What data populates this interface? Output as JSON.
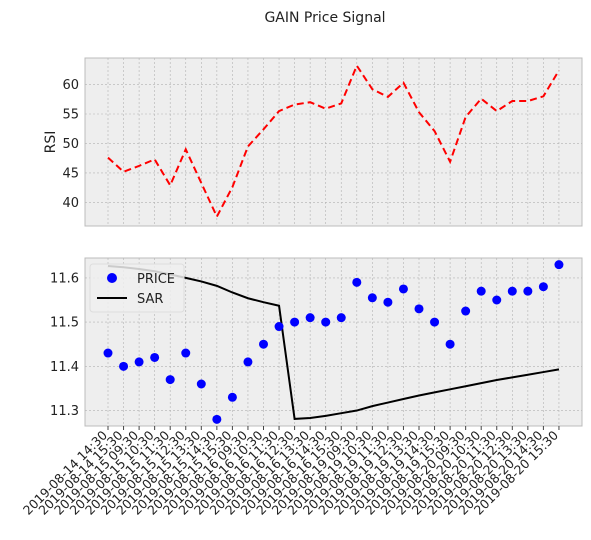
{
  "chart_data": [
    {
      "type": "line",
      "title": "GAIN Price Signal",
      "ylabel": "RSI",
      "ylim": [
        36,
        64.5
      ],
      "yticks": [
        40,
        45,
        50,
        55,
        60
      ],
      "grid": true,
      "series": [
        {
          "values": [
            47.6,
            45.2,
            46.2,
            47.3,
            42.9,
            49.0,
            43.3,
            37.6,
            42.6,
            49.5,
            52.4,
            55.5,
            56.6,
            57.0,
            55.9,
            56.8,
            63.2,
            59.2,
            57.9,
            60.3,
            55.3,
            52.1,
            46.9,
            54.5,
            57.6,
            55.5,
            57.2,
            57.2,
            58.0,
            62.4
          ],
          "color": "#ff0000",
          "style": "dashed"
        }
      ]
    },
    {
      "type": "line",
      "ylim": [
        11.265,
        11.645
      ],
      "yticks": [
        11.3,
        11.4,
        11.5,
        11.6
      ],
      "grid": true,
      "legend_position": "upper-left",
      "x": [
        "2019-08-14 14:30",
        "2019-08-14 15:30",
        "2019-08-15 09:30",
        "2019-08-15 10:30",
        "2019-08-15 11:30",
        "2019-08-15 12:30",
        "2019-08-15 13:30",
        "2019-08-15 14:30",
        "2019-08-15 15:30",
        "2019-08-16 09:30",
        "2019-08-16 10:30",
        "2019-08-16 11:30",
        "2019-08-16 12:30",
        "2019-08-16 13:30",
        "2019-08-16 14:30",
        "2019-08-16 15:30",
        "2019-08-19 09:30",
        "2019-08-19 10:30",
        "2019-08-19 11:30",
        "2019-08-19 12:30",
        "2019-08-19 13:30",
        "2019-08-19 14:30",
        "2019-08-19 15:30",
        "2019-08-20 09:30",
        "2019-08-20 10:30",
        "2019-08-20 11:30",
        "2019-08-20 12:30",
        "2019-08-20 13:30",
        "2019-08-20 14:30",
        "2019-08-20 15:30"
      ],
      "series": [
        {
          "name": "PRICE",
          "type": "scatter",
          "color": "#0000ff",
          "values": [
            11.43,
            11.4,
            11.41,
            11.42,
            11.37,
            11.43,
            11.36,
            11.28,
            11.33,
            11.41,
            11.45,
            11.49,
            11.5,
            11.51,
            11.5,
            11.51,
            11.59,
            11.555,
            11.545,
            11.575,
            11.53,
            11.5,
            11.45,
            11.525,
            11.57,
            11.55,
            11.57,
            11.57,
            11.58,
            11.63
          ]
        },
        {
          "name": "SAR",
          "type": "line",
          "color": "#000000",
          "values": [
            11.627,
            11.624,
            11.62,
            11.615,
            11.608,
            11.6,
            11.592,
            11.582,
            11.567,
            11.554,
            11.545,
            11.537,
            11.281,
            11.283,
            11.288,
            11.294,
            11.3,
            11.31,
            11.318,
            11.326,
            11.334,
            11.341,
            11.348,
            11.355,
            11.362,
            11.369,
            11.375,
            11.381,
            11.387,
            11.393
          ]
        }
      ]
    }
  ]
}
